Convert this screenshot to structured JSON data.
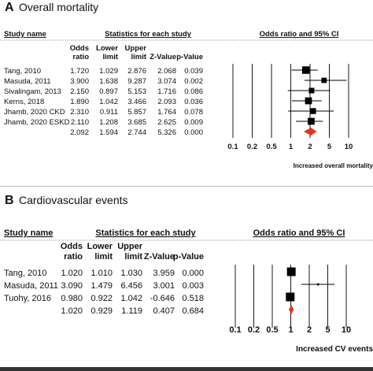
{
  "panels": [
    {
      "letter": "A",
      "title": "Overall mortality",
      "header": {
        "study_name": "Study name",
        "stats": "Statistics for each study",
        "plot": "Odds ratio and 95% CI"
      },
      "columns": [
        [
          "Odds",
          "ratio"
        ],
        [
          "Lower",
          "limit"
        ],
        [
          "Upper",
          "limit"
        ],
        [
          "",
          "Z-Value"
        ],
        [
          "",
          "p-Value"
        ]
      ],
      "rows": [
        {
          "name": "Tang, 2010",
          "values": [
            "1.720",
            "1.029",
            "2.876",
            "2.068",
            "0.039"
          ]
        },
        {
          "name": "Masuda, 2011",
          "values": [
            "3.900",
            "1.638",
            "9.287",
            "3.074",
            "0.002"
          ]
        },
        {
          "name": "Sivalingam, 2013",
          "values": [
            "2.150",
            "0.897",
            "5.153",
            "1.716",
            "0.086"
          ]
        },
        {
          "name": "Kerns, 2018",
          "values": [
            "1.890",
            "1.042",
            "3.466",
            "2.093",
            "0.036"
          ]
        },
        {
          "name": "Jhamb, 2020 CKD",
          "values": [
            "2.310",
            "0.911",
            "5.857",
            "1.764",
            "0.078"
          ]
        },
        {
          "name": "Jhamb, 2020 ESKD",
          "values": [
            "2.110",
            "1.208",
            "3.685",
            "2.625",
            "0.009"
          ]
        },
        {
          "name": "",
          "values": [
            "2.092",
            "1.594",
            "2.744",
            "5.326",
            "0.000"
          ],
          "pooled": true
        }
      ],
      "axis_ticks": [
        "0.1",
        "0.2",
        "0.5",
        "1",
        "2",
        "5",
        "10"
      ],
      "axis_note": "Increased overall mortality"
    },
    {
      "letter": "B",
      "title": "Cardiovascular events",
      "header": {
        "study_name": "Study name",
        "stats": "Statistics for each study",
        "plot": "Odds ratio and 95% CI"
      },
      "columns": [
        [
          "Odds",
          "ratio"
        ],
        [
          "Lower",
          "limit"
        ],
        [
          "Upper",
          "limit"
        ],
        [
          "",
          "Z-Value"
        ],
        [
          "",
          "p-Value"
        ]
      ],
      "rows": [
        {
          "name": "Tang, 2010",
          "values": [
            "1.020",
            "1.010",
            "1.030",
            "3.959",
            "0.000"
          ]
        },
        {
          "name": "Masuda, 2011",
          "values": [
            "3.090",
            "1.479",
            "6.456",
            "3.001",
            "0.003"
          ]
        },
        {
          "name": "Tuohy, 2016",
          "values": [
            "0.980",
            "0.922",
            "1.042",
            "-0.646",
            "0.518"
          ]
        },
        {
          "name": "",
          "values": [
            "1.020",
            "0.929",
            "1.119",
            "0.407",
            "0.684"
          ],
          "pooled": true
        }
      ],
      "axis_ticks": [
        "0.1",
        "0.2",
        "0.5",
        "1",
        "2",
        "5",
        "10"
      ],
      "axis_note": "Increased CV events"
    }
  ],
  "chart_data": [
    {
      "type": "forest",
      "title": "Overall mortality",
      "scale": "log",
      "xlim": [
        0.1,
        10
      ],
      "xticks": [
        0.1,
        0.2,
        0.5,
        1,
        2,
        5,
        10
      ],
      "studies": [
        {
          "name": "Tang, 2010",
          "or": 1.72,
          "lower": 1.029,
          "upper": 2.876
        },
        {
          "name": "Masuda, 2011",
          "or": 3.9,
          "lower": 1.638,
          "upper": 9.287
        },
        {
          "name": "Sivalingam, 2013",
          "or": 2.15,
          "lower": 0.897,
          "upper": 5.153
        },
        {
          "name": "Kerns, 2018",
          "or": 1.89,
          "lower": 1.042,
          "upper": 3.466
        },
        {
          "name": "Jhamb, 2020 CKD",
          "or": 2.31,
          "lower": 0.911,
          "upper": 5.857
        },
        {
          "name": "Jhamb, 2020 ESKD",
          "or": 2.11,
          "lower": 1.208,
          "upper": 3.685
        }
      ],
      "pooled": {
        "or": 2.092,
        "lower": 1.594,
        "upper": 2.744
      },
      "marker_weight": [
        1.0,
        0.45,
        0.5,
        0.85,
        0.6,
        0.85
      ],
      "pooled_color": "#e8321e"
    },
    {
      "type": "forest",
      "title": "Cardiovascular events",
      "scale": "log",
      "xlim": [
        0.1,
        10
      ],
      "xticks": [
        0.1,
        0.2,
        0.5,
        1,
        2,
        5,
        10
      ],
      "studies": [
        {
          "name": "Tang, 2010",
          "or": 1.02,
          "lower": 1.01,
          "upper": 1.03
        },
        {
          "name": "Masuda, 2011",
          "or": 3.09,
          "lower": 1.479,
          "upper": 6.456
        },
        {
          "name": "Tuohy, 2016",
          "or": 0.98,
          "lower": 0.922,
          "upper": 1.042
        }
      ],
      "pooled": {
        "or": 1.02,
        "lower": 0.929,
        "upper": 1.119
      },
      "marker_weight": [
        1.0,
        0.12,
        1.0
      ],
      "pooled_color": "#e8321e"
    }
  ]
}
